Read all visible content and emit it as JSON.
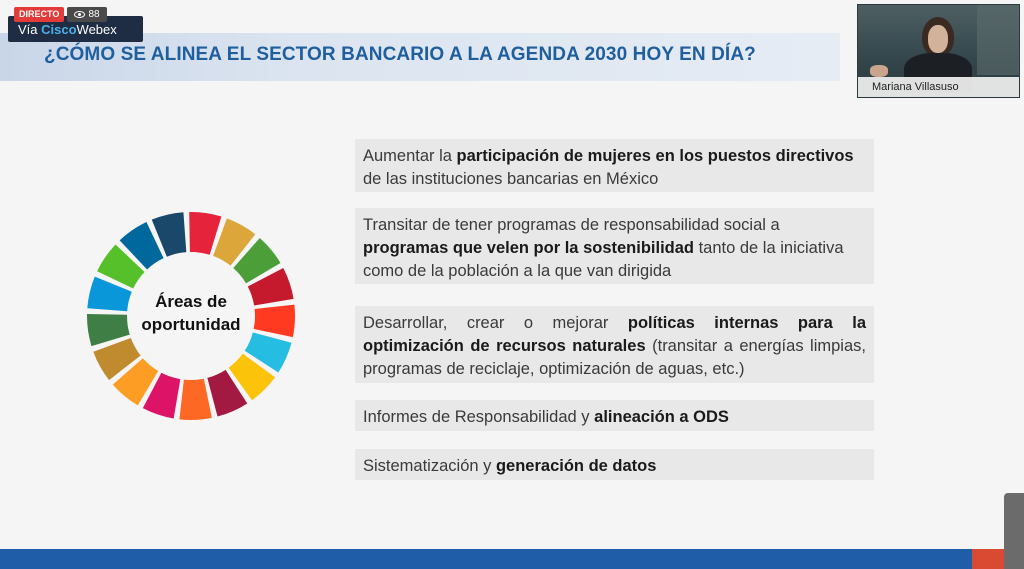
{
  "stream": {
    "live_label": "DIRECTO",
    "viewer_count": "88",
    "banner": {
      "via": "Vía ",
      "cisco": "Cisco",
      "webex": "Webex"
    }
  },
  "slide": {
    "title": "¿CÓMO SE ALINEA EL SECTOR BANCARIO A LA AGENDA 2030 HOY EN DÍA?",
    "wheel_label_line1": "Áreas de",
    "wheel_label_line2": "oportunidad",
    "wheel_colors": [
      "#e5243b",
      "#dda63a",
      "#4c9f38",
      "#c5192d",
      "#ff3a21",
      "#26bde2",
      "#fcc30b",
      "#a21942",
      "#fd6925",
      "#dd1367",
      "#fd9d24",
      "#bf8b2e",
      "#3f7e44",
      "#0a97d9",
      "#56c02b",
      "#00689d",
      "#19486a"
    ],
    "cards": [
      {
        "pre": "Aumentar la ",
        "bold": "participación de mujeres en los puestos directivos",
        "post": " de las instituciones bancarias en México"
      },
      {
        "pre": "Transitar de tener programas de responsabilidad social a ",
        "bold": "programas que velen por la sostenibilidad",
        "post": " tanto de la iniciativa como de la población a la que van dirigida"
      },
      {
        "pre": "Desarrollar, crear o mejorar ",
        "bold": "políticas internas para la optimización de recursos naturales",
        "post": " (transitar a energías limpias, programas de reciclaje, optimización de aguas, etc.)"
      },
      {
        "pre": "Informes de Responsabilidad y ",
        "bold": "alineación a ODS",
        "post": ""
      },
      {
        "pre": "Sistematización y ",
        "bold": "generación de datos",
        "post": ""
      }
    ]
  },
  "participant": {
    "name": "Mariana Villasuso"
  }
}
